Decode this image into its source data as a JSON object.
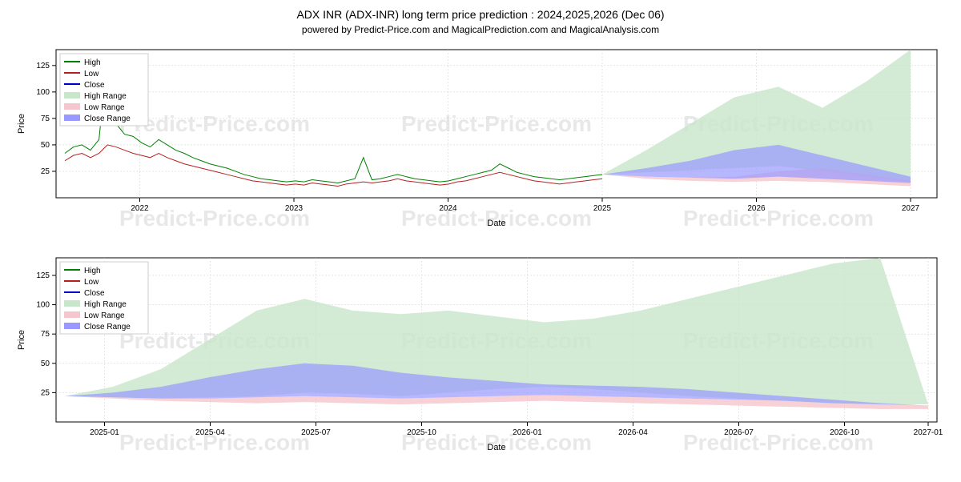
{
  "title": "ADX INR (ADX-INR) long term price prediction : 2024,2025,2026 (Dec 06)",
  "subtitle": "powered by Predict-Price.com and MagicalPrediction.com and MagicalAnalysis.com",
  "watermark": "Predict-Price.com",
  "chart1": {
    "type": "line_area",
    "ylabel": "Price",
    "xlabel": "Date",
    "ylim": [
      0,
      140
    ],
    "yticks": [
      25,
      50,
      75,
      100,
      125
    ],
    "xticks": [
      "2022",
      "2023",
      "2024",
      "2025",
      "2026",
      "2027"
    ],
    "xtick_positions": [
      0.095,
      0.27,
      0.445,
      0.62,
      0.795,
      0.97
    ],
    "background_color": "#ffffff",
    "grid_color": "#cccccc",
    "colors": {
      "high": "#008000",
      "low": "#b22222",
      "close": "#0000cd",
      "high_range": "#c8e6c9",
      "low_range": "#f5c6cb",
      "close_range": "#9999ff"
    },
    "legend": {
      "items": [
        "High",
        "Low",
        "Close",
        "High Range",
        "Low Range",
        "Close Range"
      ],
      "position": "upper_left"
    },
    "historical": {
      "x_start": 0.01,
      "x_end": 0.62,
      "high_data": [
        42,
        48,
        50,
        45,
        55,
        135,
        70,
        60,
        58,
        52,
        48,
        55,
        50,
        45,
        42,
        38,
        35,
        32,
        30,
        28,
        25,
        22,
        20,
        18,
        17,
        16,
        15,
        16,
        15,
        17,
        16,
        15,
        14,
        16,
        18,
        38,
        17,
        18,
        20,
        22,
        20,
        18,
        17,
        16,
        15,
        16,
        18,
        20,
        22,
        24,
        26,
        32,
        28,
        24,
        22,
        20,
        19,
        18,
        17,
        18,
        19,
        20,
        21,
        22
      ],
      "low_data": [
        35,
        40,
        42,
        38,
        42,
        50,
        48,
        45,
        42,
        40,
        38,
        42,
        38,
        35,
        32,
        30,
        28,
        26,
        24,
        22,
        20,
        18,
        16,
        15,
        14,
        13,
        12,
        13,
        12,
        14,
        13,
        12,
        11,
        13,
        14,
        15,
        14,
        15,
        16,
        18,
        16,
        15,
        14,
        13,
        12,
        13,
        15,
        16,
        18,
        20,
        22,
        24,
        22,
        20,
        18,
        16,
        15,
        14,
        13,
        14,
        15,
        16,
        17,
        18
      ]
    },
    "prediction": {
      "x_start": 0.62,
      "x_end": 0.97,
      "high_range_top": [
        22,
        45,
        70,
        95,
        105,
        85,
        110,
        140
      ],
      "high_range_bottom": [
        22,
        24,
        26,
        28,
        30,
        25,
        20,
        15
      ],
      "close_range_top": [
        22,
        28,
        35,
        45,
        50,
        40,
        30,
        20
      ],
      "close_range_bottom": [
        22,
        20,
        19,
        18,
        20,
        18,
        16,
        14
      ],
      "low_range_top": [
        22,
        20,
        19,
        20,
        25,
        28,
        22,
        16
      ],
      "low_range_bottom": [
        22,
        18,
        16,
        15,
        16,
        15,
        13,
        11
      ]
    }
  },
  "chart2": {
    "type": "area",
    "ylabel": "Price",
    "xlabel": "Date",
    "ylim": [
      0,
      140
    ],
    "yticks": [
      25,
      50,
      75,
      100,
      125
    ],
    "xticks": [
      "2025-01",
      "2025-04",
      "2025-07",
      "2025-10",
      "2026-01",
      "2026-04",
      "2026-07",
      "2026-10",
      "2027-01"
    ],
    "xtick_positions": [
      0.055,
      0.175,
      0.295,
      0.415,
      0.535,
      0.655,
      0.775,
      0.895,
      0.99
    ],
    "background_color": "#ffffff",
    "grid_color": "#cccccc",
    "colors": {
      "high": "#008000",
      "low": "#b22222",
      "close": "#0000cd",
      "high_range": "#c8e6c9",
      "low_range": "#f5c6cb",
      "close_range": "#9999ff"
    },
    "legend": {
      "items": [
        "High",
        "Low",
        "Close",
        "High Range",
        "Low Range",
        "Close Range"
      ],
      "position": "upper_left"
    },
    "prediction": {
      "x_start": 0.01,
      "x_end": 0.99,
      "high_range_top": [
        22,
        30,
        45,
        70,
        95,
        105,
        95,
        92,
        95,
        90,
        85,
        88,
        95,
        105,
        115,
        125,
        135,
        140,
        15
      ],
      "high_range_bottom": [
        22,
        21,
        20,
        21,
        22,
        25,
        24,
        22,
        25,
        28,
        30,
        28,
        25,
        22,
        20,
        18,
        16,
        15,
        15
      ],
      "close_range_top": [
        22,
        25,
        30,
        38,
        45,
        50,
        48,
        42,
        38,
        35,
        32,
        31,
        30,
        28,
        25,
        22,
        19,
        16,
        14
      ],
      "close_range_bottom": [
        22,
        21,
        20,
        20,
        21,
        22,
        21,
        20,
        21,
        22,
        23,
        22,
        21,
        20,
        19,
        18,
        16,
        15,
        14
      ],
      "low_range_top": [
        22,
        21,
        20,
        20,
        21,
        22,
        21,
        20,
        21,
        22,
        23,
        22,
        21,
        20,
        19,
        18,
        16,
        15,
        14
      ],
      "low_range_bottom": [
        22,
        20,
        18,
        17,
        16,
        17,
        16,
        15,
        16,
        17,
        18,
        17,
        16,
        15,
        14,
        13,
        12,
        11,
        11
      ]
    }
  }
}
